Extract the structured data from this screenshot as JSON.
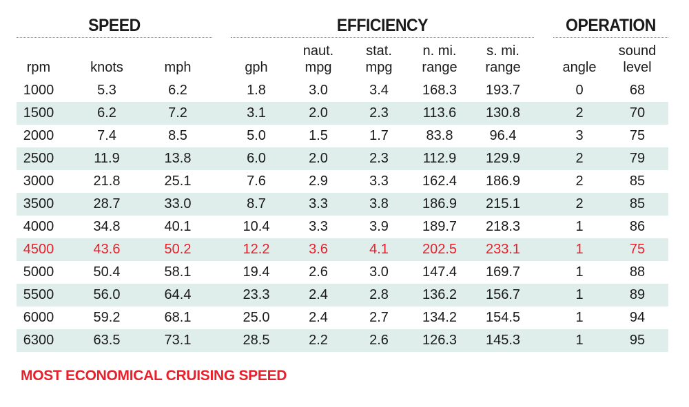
{
  "groups": {
    "speed": "SPEED",
    "efficiency": "EFFICIENCY",
    "operation": "OPERATION"
  },
  "headers": [
    [
      "rpm"
    ],
    [
      "knots"
    ],
    [
      "mph"
    ],
    [
      "gph"
    ],
    [
      "naut.",
      "mpg"
    ],
    [
      "stat.",
      "mpg"
    ],
    [
      "n. mi.",
      "range"
    ],
    [
      "s. mi.",
      "range"
    ],
    [
      "angle"
    ],
    [
      "sound",
      "level"
    ]
  ],
  "footnote": "MOST ECONOMICAL CRUISING SPEED",
  "colors": {
    "highlight": "#e8202c",
    "row_shade": "#dfeeea"
  },
  "chart_data": {
    "type": "table",
    "title": "",
    "columns": [
      "rpm",
      "knots",
      "mph",
      "gph",
      "naut. mpg",
      "stat. mpg",
      "n. mi. range",
      "s. mi. range",
      "angle",
      "sound level"
    ],
    "highlight_row_index": 7,
    "rows": [
      [
        "1000",
        "5.3",
        "6.2",
        "1.8",
        "3.0",
        "3.4",
        "168.3",
        "193.7",
        "0",
        "68"
      ],
      [
        "1500",
        "6.2",
        "7.2",
        "3.1",
        "2.0",
        "2.3",
        "113.6",
        "130.8",
        "2",
        "70"
      ],
      [
        "2000",
        "7.4",
        "8.5",
        "5.0",
        "1.5",
        "1.7",
        "83.8",
        "96.4",
        "3",
        "75"
      ],
      [
        "2500",
        "11.9",
        "13.8",
        "6.0",
        "2.0",
        "2.3",
        "112.9",
        "129.9",
        "2",
        "79"
      ],
      [
        "3000",
        "21.8",
        "25.1",
        "7.6",
        "2.9",
        "3.3",
        "162.4",
        "186.9",
        "2",
        "85"
      ],
      [
        "3500",
        "28.7",
        "33.0",
        "8.7",
        "3.3",
        "3.8",
        "186.9",
        "215.1",
        "2",
        "85"
      ],
      [
        "4000",
        "34.8",
        "40.1",
        "10.4",
        "3.3",
        "3.9",
        "189.7",
        "218.3",
        "1",
        "86"
      ],
      [
        "4500",
        "43.6",
        "50.2",
        "12.2",
        "3.6",
        "4.1",
        "202.5",
        "233.1",
        "1",
        "75"
      ],
      [
        "5000",
        "50.4",
        "58.1",
        "19.4",
        "2.6",
        "3.0",
        "147.4",
        "169.7",
        "1",
        "88"
      ],
      [
        "5500",
        "56.0",
        "64.4",
        "23.3",
        "2.4",
        "2.8",
        "136.2",
        "156.7",
        "1",
        "89"
      ],
      [
        "6000",
        "59.2",
        "68.1",
        "25.0",
        "2.4",
        "2.7",
        "134.2",
        "154.5",
        "1",
        "94"
      ],
      [
        "6300",
        "63.5",
        "73.1",
        "28.5",
        "2.2",
        "2.6",
        "126.3",
        "145.3",
        "1",
        "95"
      ]
    ]
  }
}
